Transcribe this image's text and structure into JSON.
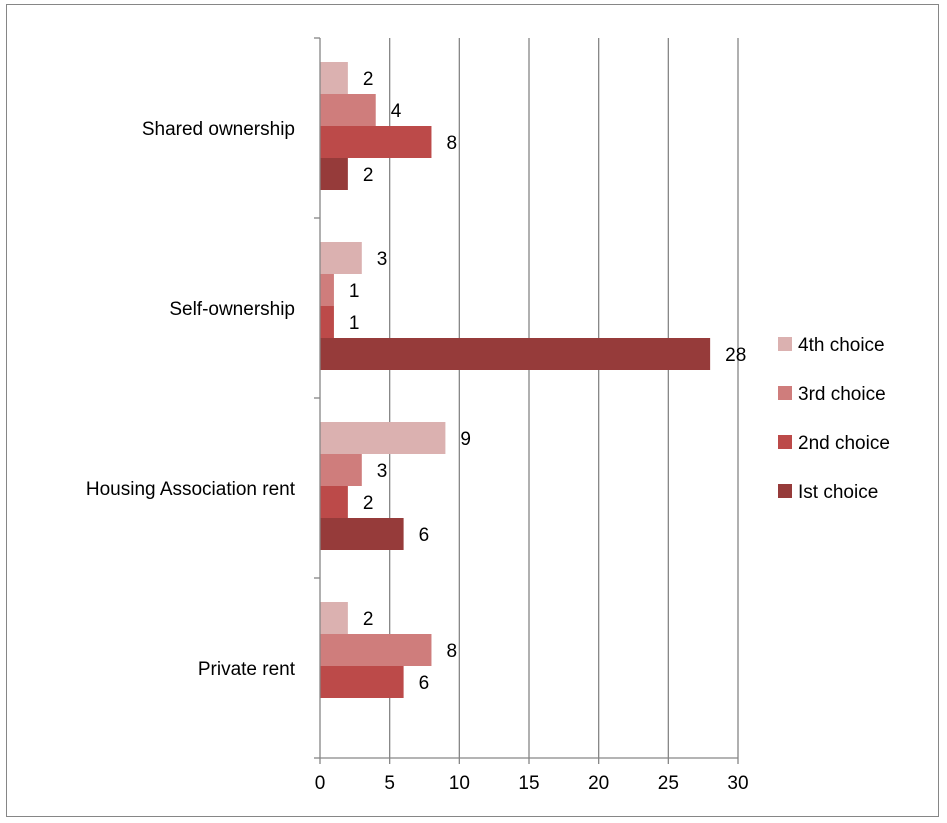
{
  "chart_data": {
    "type": "bar",
    "orientation": "horizontal",
    "title": "",
    "xlabel": "",
    "ylabel": "",
    "categories": [
      "Shared ownership",
      "Self-ownership",
      "Housing Association rent",
      "Private rent"
    ],
    "xlim": [
      0,
      30
    ],
    "xticks": [
      0,
      5,
      10,
      15,
      20,
      25,
      30
    ],
    "grid": true,
    "legend_position": "right",
    "series": [
      {
        "name": "4th choice",
        "color": "#dbb1b0",
        "values": [
          2,
          3,
          9,
          2
        ]
      },
      {
        "name": "3rd choice",
        "color": "#cf7d7c",
        "values": [
          4,
          1,
          3,
          8
        ]
      },
      {
        "name": "2nd choice",
        "color": "#bc4a49",
        "values": [
          8,
          1,
          2,
          6
        ]
      },
      {
        "name": "Ist choice",
        "color": "#963b3a",
        "values": [
          2,
          28,
          6,
          null
        ]
      }
    ]
  }
}
